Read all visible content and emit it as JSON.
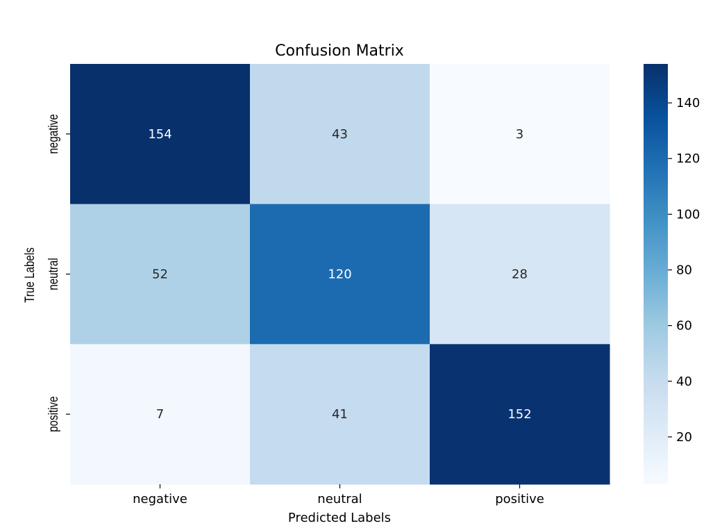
{
  "chart_data": {
    "type": "heatmap",
    "title": "Confusion Matrix",
    "xlabel": "Predicted Labels",
    "ylabel": "True Labels",
    "x_categories": [
      "negative",
      "neutral",
      "positive"
    ],
    "y_categories": [
      "negative",
      "neutral",
      "positive"
    ],
    "values": [
      [
        154,
        43,
        3
      ],
      [
        52,
        120,
        28
      ],
      [
        7,
        41,
        152
      ]
    ],
    "colorbar": {
      "colormap": "Blues",
      "range": [
        3,
        154
      ],
      "ticks": [
        20,
        40,
        60,
        80,
        100,
        120,
        140
      ],
      "tick_labels": [
        "20",
        "40",
        "60",
        "80",
        "100",
        "120",
        "140"
      ]
    },
    "colors": {
      "low": "#f7fbff",
      "high": "#08306b",
      "text_dark": "#262626",
      "text_light": "#ffffff"
    }
  }
}
